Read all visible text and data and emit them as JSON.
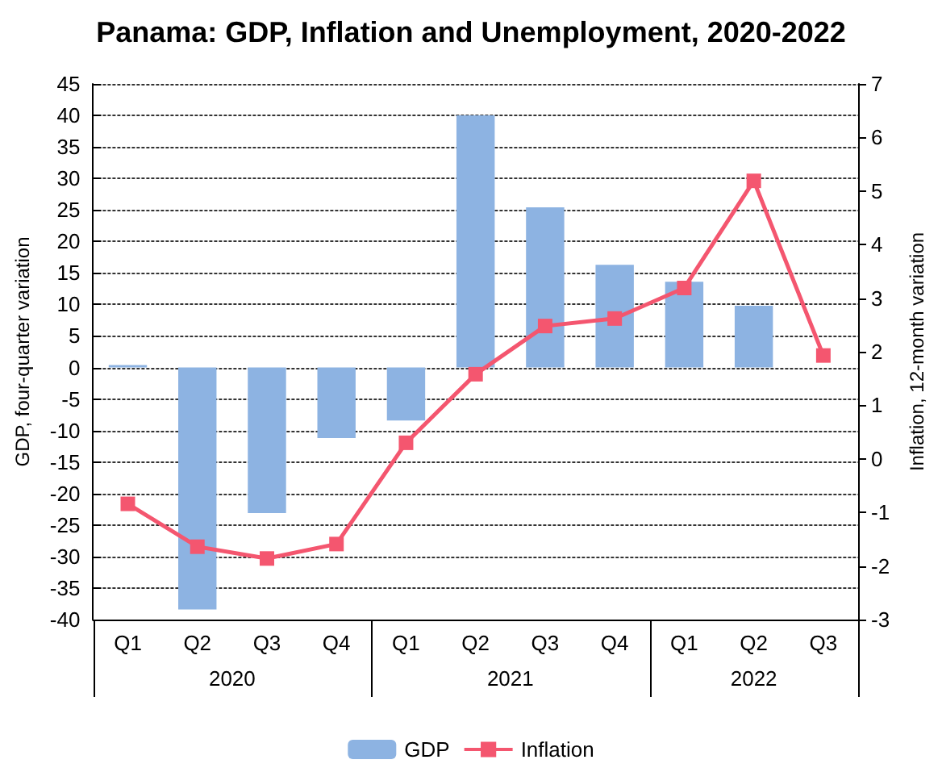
{
  "chart_data": {
    "type": "bar",
    "title": "Panama: GDP, Inflation and Unemployment, 2020-2022",
    "categories": [
      "Q1",
      "Q2",
      "Q3",
      "Q4",
      "Q1",
      "Q2",
      "Q3",
      "Q4",
      "Q1",
      "Q2",
      "Q3"
    ],
    "annotations": [
      "2020",
      "2021",
      "2022"
    ],
    "series": [
      {
        "name": "GDP",
        "color": "#8db3e2",
        "values": [
          0.4,
          -38.4,
          -23.1,
          -11.2,
          -8.4,
          40,
          25.4,
          16.3,
          13.6,
          9.8,
          null
        ]
      },
      {
        "name": "Inflation",
        "type": "line",
        "axis": "y2",
        "color": "#f4566f",
        "marker": "square",
        "values": [
          -0.84,
          -1.64,
          -1.86,
          -1.59,
          0.3,
          1.58,
          2.48,
          2.62,
          3.19,
          5.19,
          1.93
        ]
      }
    ],
    "ylabel": "GDP, four-quarter variation",
    "y2label": "Inflation, 12-month variation",
    "ylim": [
      -40,
      45
    ],
    "yticks": [
      -40,
      -35,
      -30,
      -25,
      -20,
      -15,
      -10,
      -5,
      0,
      5,
      10,
      15,
      20,
      25,
      30,
      35,
      40,
      45
    ],
    "y2lim": [
      -3,
      7
    ],
    "y2ticks": [
      -3,
      -2,
      -1,
      0,
      1,
      2,
      3,
      4,
      5,
      6,
      7
    ],
    "grid": "y",
    "legend": "bottom"
  }
}
